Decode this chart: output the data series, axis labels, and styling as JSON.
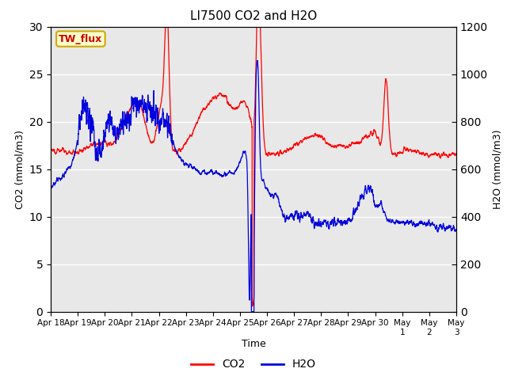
{
  "title": "LI7500 CO2 and H2O",
  "xlabel": "Time",
  "ylabel_left": "CO2 (mmol/m3)",
  "ylabel_right": "H2O (mmol/m3)",
  "annotation": "TW_flux",
  "co2_color": "#ff0000",
  "h2o_color": "#0000dd",
  "fig_bg_color": "#ffffff",
  "plot_bg_color": "#e8e8e8",
  "grid_color": "#ffffff",
  "ylim_left": [
    0,
    30
  ],
  "ylim_right": [
    0,
    1200
  ],
  "yticks_left": [
    0,
    5,
    10,
    15,
    20,
    25,
    30
  ],
  "yticks_right": [
    0,
    200,
    400,
    600,
    800,
    1000,
    1200
  ],
  "xtick_labels": [
    "Apr 18",
    "Apr 19",
    "Apr 20",
    "Apr 21",
    "Apr 22",
    "Apr 23",
    "Apr 24",
    "Apr 25",
    "Apr 26",
    "Apr 27",
    "Apr 28",
    "Apr 29",
    "Apr 30",
    "May 1",
    "May 2",
    "May 3"
  ],
  "n_points": 3000
}
